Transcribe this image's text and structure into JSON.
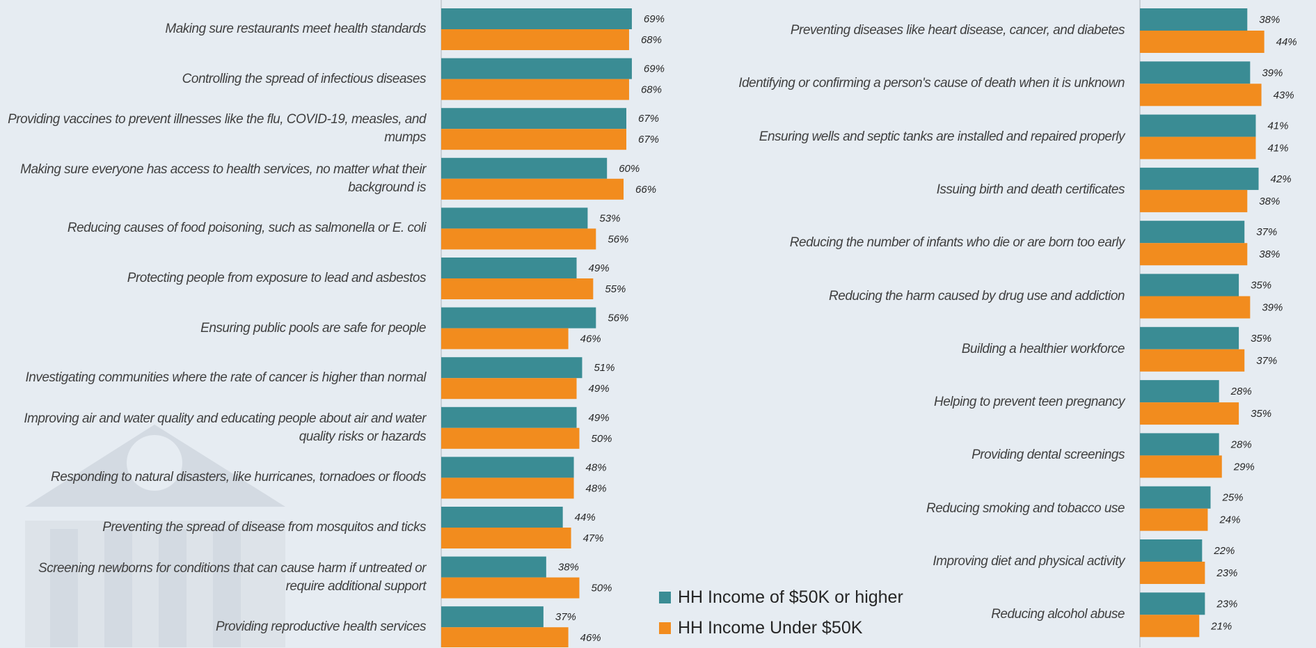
{
  "chart_data": [
    {
      "type": "bar",
      "orientation": "horizontal",
      "categories": [
        "Making sure restaurants meet health standards",
        "Controlling the spread of infectious diseases",
        "Providing vaccines to prevent illnesses like the flu, COVID-19, measles, and mumps",
        "Making sure everyone has access to health services, no matter what their background is",
        "Reducing causes of food poisoning, such as salmonella or E. coli",
        "Protecting people from exposure to lead and asbestos",
        "Ensuring public pools are safe for people",
        "Investigating communities where the rate of cancer is higher than normal",
        "Improving air and water quality and educating people about air and water quality risks or hazards",
        "Responding to natural disasters, like hurricanes, tornadoes or floods",
        "Preventing the spread of disease from mosquitos and ticks",
        "Screening newborns for conditions that can cause harm if untreated or require additional support",
        "Providing reproductive health services"
      ],
      "series": [
        {
          "name": "HH Income of $50K or higher",
          "color": "#3a8c94",
          "values": [
            69,
            69,
            67,
            60,
            53,
            49,
            56,
            51,
            49,
            48,
            44,
            38,
            37
          ],
          "value_labels": [
            "69%",
            "69%",
            "67%",
            "60%",
            "53%",
            "49%",
            "56%",
            "51%",
            "49%",
            "48%",
            "44%",
            "38%",
            "37%"
          ]
        },
        {
          "name": "HH Income Under $50K",
          "color": "#f28c1e",
          "values": [
            68,
            68,
            67,
            66,
            56,
            55,
            46,
            49,
            50,
            48,
            47,
            50,
            46
          ],
          "value_labels": [
            "68%",
            "68%",
            "67%",
            "66%",
            "56%",
            "55%",
            "46%",
            "49%",
            "50%",
            "48%",
            "47%",
            "50%",
            "46%"
          ]
        }
      ]
    },
    {
      "type": "bar",
      "orientation": "horizontal",
      "categories": [
        "Preventing diseases like heart disease, cancer, and diabetes",
        "Identifying or confirming a person's cause of death when it is unknown",
        "Ensuring wells and septic tanks are installed and repaired properly",
        "Issuing birth and death certificates",
        "Reducing the number of infants who die or are born too early",
        "Reducing the harm caused by drug use and addiction",
        "Building a healthier workforce",
        "Helping to prevent teen pregnancy",
        "Providing dental screenings",
        "Reducing smoking and tobacco use",
        "Improving diet and physical activity",
        "Reducing alcohol abuse"
      ],
      "series": [
        {
          "color": "#3a8c94",
          "values": [
            38,
            39,
            41,
            42,
            37,
            35,
            35,
            28,
            28,
            25,
            22,
            23
          ],
          "value_labels": [
            "38%",
            "39%",
            "41%",
            "42%",
            "37%",
            "35%",
            "35%",
            "28%",
            "28%",
            "25%",
            "22%",
            "23%"
          ]
        },
        {
          "color": "#f28c1e",
          "values": [
            44,
            43,
            41,
            38,
            38,
            39,
            37,
            35,
            29,
            24,
            23,
            21
          ],
          "value_labels": [
            "44%",
            "43%",
            "41%",
            "38%",
            "38%",
            "39%",
            "37%",
            "35%",
            "29%",
            "24%",
            "23%",
            "21%"
          ]
        }
      ]
    }
  ]
}
